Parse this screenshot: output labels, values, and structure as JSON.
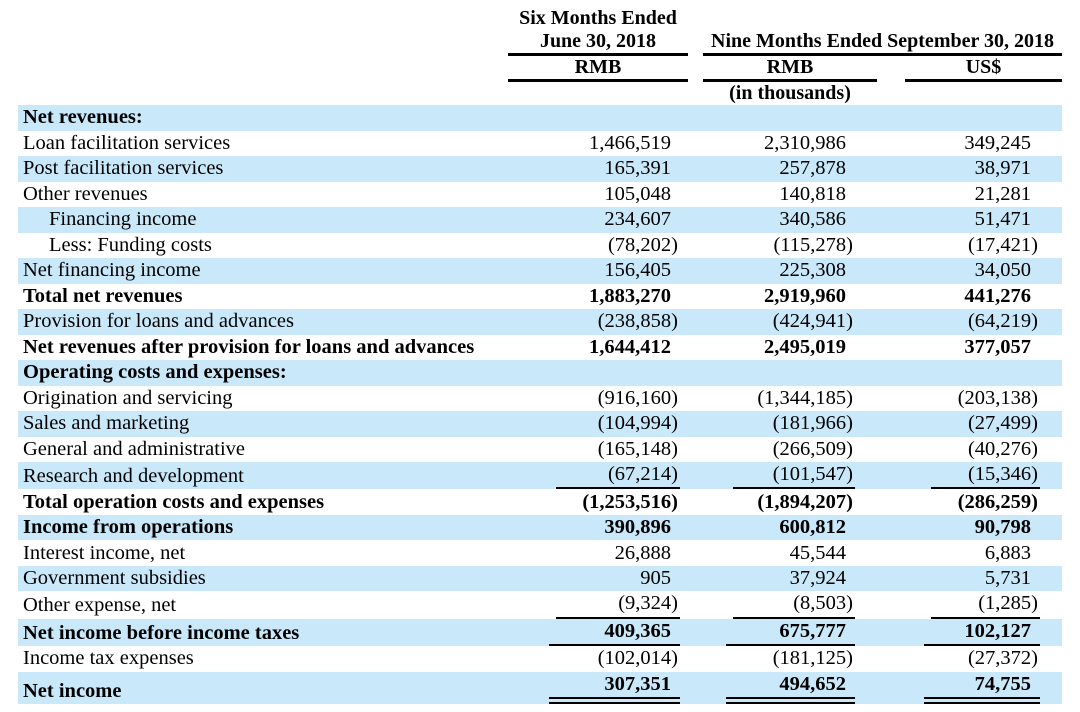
{
  "colors": {
    "row_highlight": "#c9e8fa",
    "text": "#000000",
    "rule": "#000000"
  },
  "table": {
    "header": {
      "group1_line1": "Six Months Ended",
      "group1_line2": "June 30, 2018",
      "group2": "Nine Months Ended September 30, 2018",
      "col1_unit": "RMB",
      "col2_unit": "RMB",
      "col3_unit": "US$",
      "units_note": "(in thousands)"
    },
    "rows": [
      {
        "label": "Net revenues:",
        "bold": true,
        "indent": 0,
        "shaded": true,
        "v1": "",
        "v2": "",
        "v3": "",
        "rule": ""
      },
      {
        "label": "Loan facilitation services",
        "bold": false,
        "indent": 0,
        "shaded": false,
        "v1": "1,466,519",
        "v2": "2,310,986",
        "v3": "349,245",
        "rule": ""
      },
      {
        "label": "Post facilitation services",
        "bold": false,
        "indent": 0,
        "shaded": true,
        "v1": "165,391",
        "v2": "257,878",
        "v3": "38,971",
        "rule": ""
      },
      {
        "label": "Other revenues",
        "bold": false,
        "indent": 0,
        "shaded": false,
        "v1": "105,048",
        "v2": "140,818",
        "v3": "21,281",
        "rule": ""
      },
      {
        "label": "Financing income",
        "bold": false,
        "indent": 1,
        "shaded": true,
        "v1": "234,607",
        "v2": "340,586",
        "v3": "51,471",
        "rule": ""
      },
      {
        "label": "Less: Funding costs",
        "bold": false,
        "indent": 1,
        "shaded": false,
        "v1": "(78,202)",
        "v2": "(115,278)",
        "v3": "(17,421)",
        "rule": ""
      },
      {
        "label": "Net financing income",
        "bold": false,
        "indent": 0,
        "shaded": true,
        "v1": "156,405",
        "v2": "225,308",
        "v3": "34,050",
        "rule": ""
      },
      {
        "label": "Total net revenues",
        "bold": true,
        "indent": 0,
        "shaded": false,
        "v1": "1,883,270",
        "v2": "2,919,960",
        "v3": "441,276",
        "rule": ""
      },
      {
        "label": "Provision for loans and advances",
        "bold": false,
        "indent": 0,
        "shaded": true,
        "v1": "(238,858)",
        "v2": "(424,941)",
        "v3": "(64,219)",
        "rule": ""
      },
      {
        "label": "Net revenues after provision for loans and advances",
        "bold": true,
        "indent": 0,
        "shaded": false,
        "v1": "1,644,412",
        "v2": "2,495,019",
        "v3": "377,057",
        "rule": ""
      },
      {
        "label": "Operating costs and expenses:",
        "bold": true,
        "indent": 0,
        "shaded": true,
        "v1": "",
        "v2": "",
        "v3": "",
        "rule": ""
      },
      {
        "label": "Origination and servicing",
        "bold": false,
        "indent": 0,
        "shaded": false,
        "v1": "(916,160)",
        "v2": "(1,344,185)",
        "v3": "(203,138)",
        "rule": ""
      },
      {
        "label": "Sales and marketing",
        "bold": false,
        "indent": 0,
        "shaded": true,
        "v1": "(104,994)",
        "v2": "(181,966)",
        "v3": "(27,499)",
        "rule": ""
      },
      {
        "label": "General and administrative",
        "bold": false,
        "indent": 0,
        "shaded": false,
        "v1": "(165,148)",
        "v2": "(266,509)",
        "v3": "(40,276)",
        "rule": ""
      },
      {
        "label": "Research and development",
        "bold": false,
        "indent": 0,
        "shaded": true,
        "v1": "(67,214)",
        "v2": "(101,547)",
        "v3": "(15,346)",
        "rule": "single"
      },
      {
        "label": "Total operation costs and expenses",
        "bold": true,
        "indent": 0,
        "shaded": false,
        "v1": "(1,253,516)",
        "v2": "(1,894,207)",
        "v3": "(286,259)",
        "rule": ""
      },
      {
        "label": "Income from operations",
        "bold": true,
        "indent": 0,
        "shaded": true,
        "v1": "390,896",
        "v2": "600,812",
        "v3": "90,798",
        "rule": ""
      },
      {
        "label": "Interest income, net",
        "bold": false,
        "indent": 0,
        "shaded": false,
        "v1": "26,888",
        "v2": "45,544",
        "v3": "6,883",
        "rule": ""
      },
      {
        "label": "Government subsidies",
        "bold": false,
        "indent": 0,
        "shaded": true,
        "v1": "905",
        "v2": "37,924",
        "v3": "5,731",
        "rule": ""
      },
      {
        "label": "Other expense, net",
        "bold": false,
        "indent": 0,
        "shaded": false,
        "v1": "(9,324)",
        "v2": "(8,503)",
        "v3": "(1,285)",
        "rule": "single"
      },
      {
        "label": "Net income before income taxes",
        "bold": true,
        "indent": 0,
        "shaded": true,
        "v1": "409,365",
        "v2": "675,777",
        "v3": "102,127",
        "rule": "single"
      },
      {
        "label": "Income tax expenses",
        "bold": false,
        "indent": 0,
        "shaded": false,
        "v1": "(102,014)",
        "v2": "(181,125)",
        "v3": "(27,372)",
        "rule": ""
      },
      {
        "label": "Net income",
        "bold": true,
        "indent": 0,
        "shaded": true,
        "v1": "307,351",
        "v2": "494,652",
        "v3": "74,755",
        "rule": "double"
      }
    ]
  }
}
